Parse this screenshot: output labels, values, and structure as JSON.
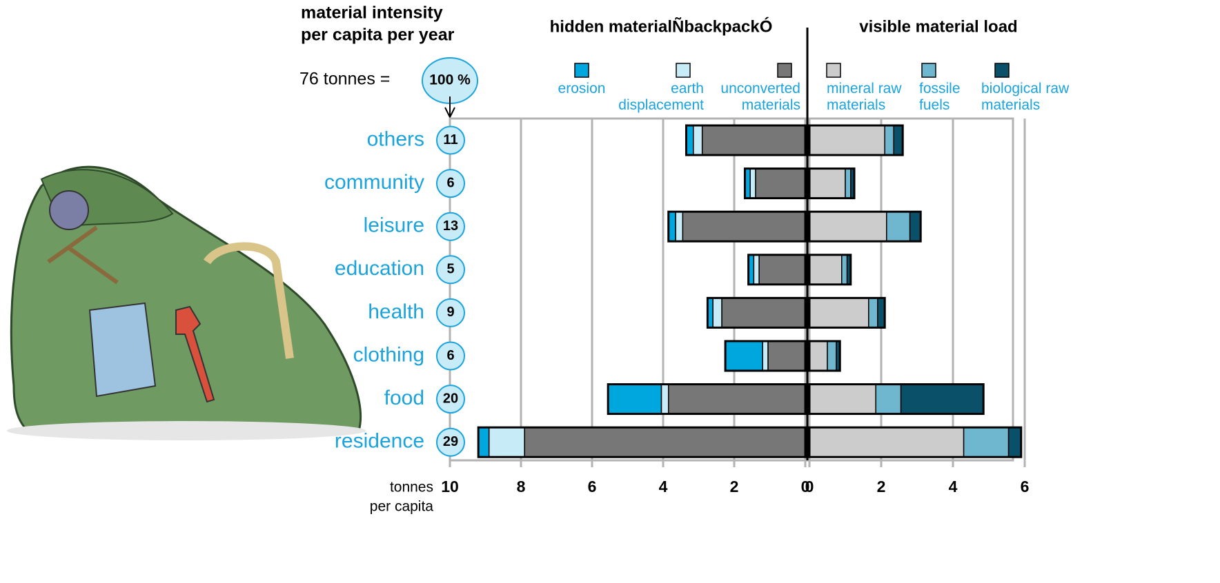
{
  "chart_data": {
    "type": "bar",
    "orientation": "horizontal",
    "stacked": true,
    "grid": true,
    "title_lines": [
      "material intensity",
      "per capita per year"
    ],
    "total_text": "76 tonnes =",
    "total_share": {
      "value": 100,
      "label": "100 %"
    },
    "categories": [
      "others",
      "community",
      "leisure",
      "education",
      "health",
      "clothing",
      "food",
      "residence"
    ],
    "shares": [
      11,
      6,
      13,
      5,
      9,
      6,
      20,
      29
    ],
    "xlabel_lines": [
      "tonnes",
      "per capita"
    ],
    "panels": [
      {
        "title": "hidden materialÑbackpackÓ",
        "xlim": [
          10,
          0
        ],
        "xticks": [
          10,
          8,
          6,
          4,
          2,
          0
        ],
        "series": [
          {
            "name": "erosion",
            "color": "#00a6de",
            "values": [
              0.2,
              0.15,
              0.2,
              0.15,
              0.15,
              1.05,
              1.5,
              0.3
            ]
          },
          {
            "name": "earth displacement",
            "color": "#c8ecf7",
            "values": [
              0.25,
              0.15,
              0.2,
              0.15,
              0.25,
              0.15,
              0.2,
              1.0
            ]
          },
          {
            "name": "unconverted materials",
            "color": "#777777",
            "values": [
              2.9,
              1.4,
              3.45,
              1.3,
              2.35,
              1.05,
              3.85,
              7.9
            ]
          }
        ]
      },
      {
        "title": "visible material load",
        "xlim": [
          0,
          6
        ],
        "xticks": [
          0,
          2,
          4,
          6
        ],
        "series": [
          {
            "name": "mineral raw materials",
            "color": "#cccccc",
            "values": [
              2.1,
              1.0,
              2.15,
              0.9,
              1.65,
              0.5,
              1.85,
              4.3
            ]
          },
          {
            "name": "fossile fuels",
            "color": "#6fb7cf",
            "values": [
              0.25,
              0.15,
              0.65,
              0.15,
              0.25,
              0.25,
              0.7,
              1.25
            ]
          },
          {
            "name": "biological raw materials",
            "color": "#0a5068",
            "values": [
              0.25,
              0.1,
              0.3,
              0.1,
              0.2,
              0.1,
              2.3,
              0.35
            ]
          }
        ]
      }
    ]
  }
}
